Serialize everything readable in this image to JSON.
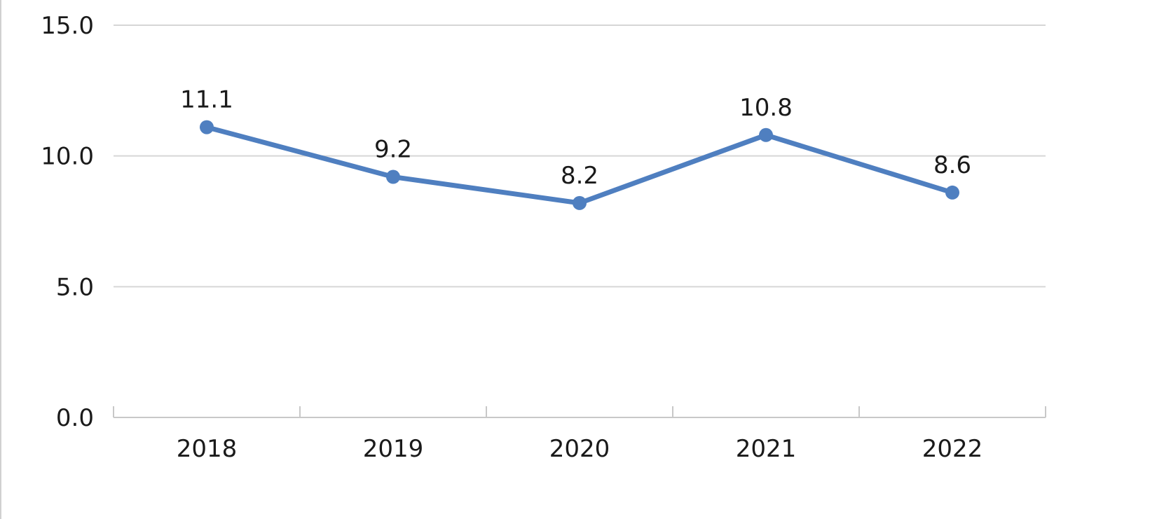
{
  "chart_data": {
    "type": "line",
    "title": "",
    "xlabel": "",
    "ylabel": "",
    "categories": [
      "2018",
      "2019",
      "2020",
      "2021",
      "2022"
    ],
    "ylim": [
      0,
      15
    ],
    "yticks": [
      "0.0",
      "5.0",
      "10.0",
      "15.0"
    ],
    "grid": true,
    "legend": "none",
    "series": [
      {
        "values": [
          11.1,
          9.2,
          8.2,
          10.8,
          8.6
        ],
        "labels": [
          "11.1",
          "9.2",
          "8.2",
          "10.8",
          "8.6"
        ],
        "color": "#4f7fc0"
      }
    ],
    "colors": {
      "gridline": "#d6d6d6",
      "axis": "#c8c8c8",
      "line": "#4f7fc0",
      "text": "#1a1a1a"
    }
  }
}
